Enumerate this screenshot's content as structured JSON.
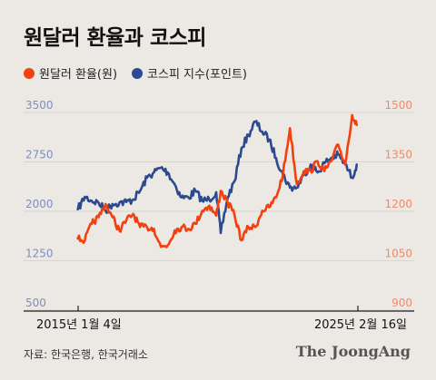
{
  "title": "원달러 환율과 코스피",
  "legend": [
    {
      "label": "원달러 환율(원)",
      "color": "#f3400f"
    },
    {
      "label": "코스피 지수(포인트)",
      "color": "#2b4a8f"
    }
  ],
  "source": "자료: 한국은행, 한국거래소",
  "brand": "The JoongAng",
  "chart_data": {
    "type": "line",
    "title": "원달러 환율과 코스피",
    "x_start_label": "2015년 1월 4일",
    "x_end_label": "2025년 2월 16일",
    "x_range": [
      "2015-01-04",
      "2025-02-16"
    ],
    "left_axis": {
      "ticks": [
        "3500",
        "2750",
        "2000",
        "1250",
        "500"
      ],
      "ylim": [
        500,
        3500
      ],
      "color": "#7b8fc4"
    },
    "right_axis": {
      "ticks": [
        "1500",
        "1350",
        "1200",
        "1050",
        "900"
      ],
      "ylim": [
        900,
        1500
      ],
      "color": "#f08a6a"
    },
    "grid": true,
    "legend_position": "top-left",
    "series": [
      {
        "name": "코스피 지수(포인트)",
        "axis": "left",
        "color": "#2b4a8f",
        "x": [
          "2015-01",
          "2015-04",
          "2015-07",
          "2015-10",
          "2016-01",
          "2016-04",
          "2016-07",
          "2016-10",
          "2017-01",
          "2017-04",
          "2017-07",
          "2017-10",
          "2018-01",
          "2018-04",
          "2018-07",
          "2018-10",
          "2019-01",
          "2019-04",
          "2019-07",
          "2019-10",
          "2020-01",
          "2020-03",
          "2020-06",
          "2020-09",
          "2020-12",
          "2021-03",
          "2021-06",
          "2021-09",
          "2021-12",
          "2022-03",
          "2022-06",
          "2022-09",
          "2022-12",
          "2023-03",
          "2023-06",
          "2023-09",
          "2023-12",
          "2024-03",
          "2024-06",
          "2024-09",
          "2024-12",
          "2025-02"
        ],
        "values": [
          1920,
          2110,
          2050,
          2020,
          1900,
          2000,
          2020,
          2030,
          2070,
          2200,
          2400,
          2480,
          2550,
          2480,
          2300,
          2100,
          2100,
          2200,
          2050,
          2070,
          2180,
          1560,
          2100,
          2350,
          2850,
          3050,
          3250,
          3100,
          2980,
          2700,
          2450,
          2250,
          2250,
          2440,
          2600,
          2480,
          2620,
          2700,
          2750,
          2600,
          2400,
          2600
        ]
      },
      {
        "name": "원달러 환율(원)",
        "axis": "right",
        "color": "#f3400f",
        "x": [
          "2015-01",
          "2015-04",
          "2015-07",
          "2015-10",
          "2016-01",
          "2016-04",
          "2016-07",
          "2016-10",
          "2017-01",
          "2017-04",
          "2017-07",
          "2017-10",
          "2018-01",
          "2018-04",
          "2018-07",
          "2018-10",
          "2019-01",
          "2019-04",
          "2019-07",
          "2019-10",
          "2020-01",
          "2020-03",
          "2020-06",
          "2020-09",
          "2020-12",
          "2021-03",
          "2021-06",
          "2021-09",
          "2021-12",
          "2022-03",
          "2022-06",
          "2022-09",
          "2022-12",
          "2023-03",
          "2023-06",
          "2023-09",
          "2023-12",
          "2024-03",
          "2024-06",
          "2024-09",
          "2024-12",
          "2025-02"
        ],
        "values": [
          1095,
          1090,
          1140,
          1160,
          1200,
          1160,
          1120,
          1150,
          1170,
          1130,
          1130,
          1125,
          1070,
          1075,
          1120,
          1130,
          1125,
          1140,
          1180,
          1195,
          1165,
          1240,
          1205,
          1165,
          1090,
          1130,
          1130,
          1180,
          1190,
          1220,
          1290,
          1430,
          1260,
          1300,
          1300,
          1330,
          1300,
          1330,
          1380,
          1320,
          1470,
          1440
        ]
      }
    ]
  }
}
